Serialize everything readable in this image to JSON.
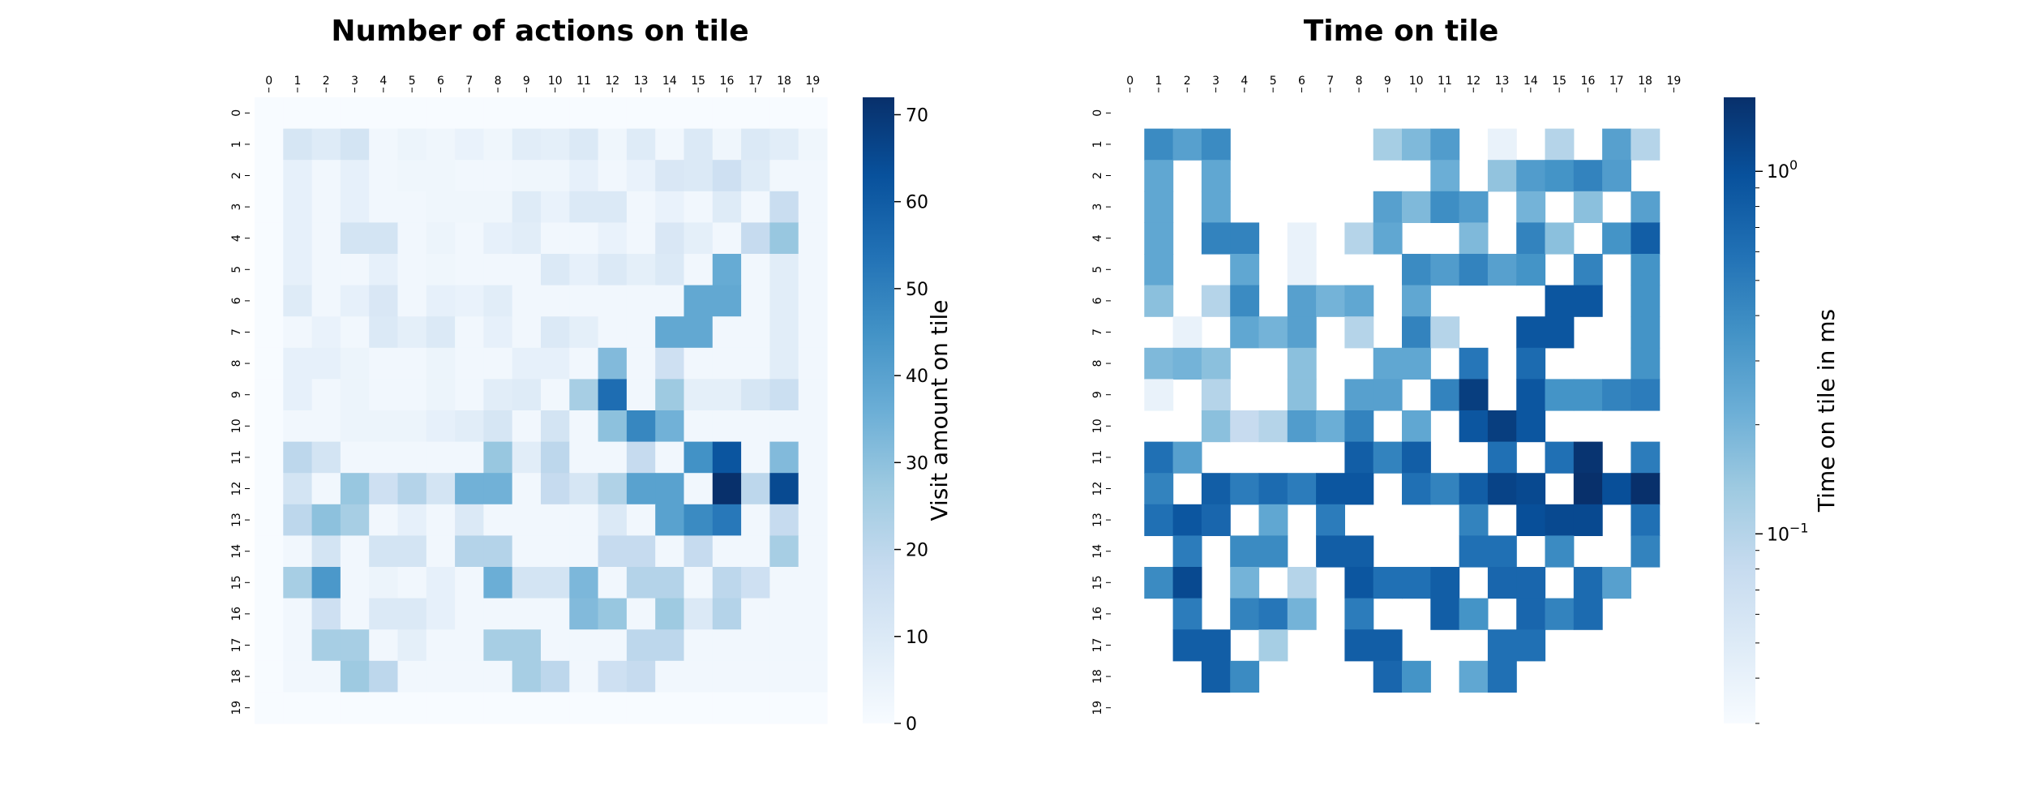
{
  "chart_data": [
    {
      "type": "heatmap",
      "title": "Number of actions on tile",
      "x_ticks": [
        "0",
        "1",
        "2",
        "3",
        "4",
        "5",
        "6",
        "7",
        "8",
        "9",
        "10",
        "11",
        "12",
        "13",
        "14",
        "15",
        "16",
        "17",
        "18",
        "19"
      ],
      "y_ticks": [
        "0",
        "1",
        "2",
        "3",
        "4",
        "5",
        "6",
        "7",
        "8",
        "9",
        "10",
        "11",
        "12",
        "13",
        "14",
        "15",
        "16",
        "17",
        "18",
        "19"
      ],
      "colorbar": {
        "label": "Visit amount on tile",
        "scale": "linear",
        "range": [
          0,
          72
        ],
        "ticks": [
          "0",
          "10",
          "20",
          "30",
          "40",
          "50",
          "60",
          "70"
        ],
        "tick_values": [
          0,
          10,
          20,
          30,
          40,
          50,
          60,
          70
        ]
      },
      "colormap": "Blues",
      "values": [
        [
          0,
          0,
          0,
          0,
          0,
          0,
          0,
          0,
          0,
          0,
          0,
          0,
          0,
          0,
          0,
          0,
          0,
          0,
          0,
          0
        ],
        [
          0,
          12,
          9,
          13,
          2,
          4,
          3,
          5,
          3,
          8,
          7,
          10,
          3,
          9,
          2,
          10,
          3,
          10,
          8,
          3
        ],
        [
          0,
          6,
          2,
          6,
          2,
          3,
          3,
          2,
          2,
          3,
          3,
          6,
          2,
          5,
          11,
          10,
          15,
          9,
          2,
          2
        ],
        [
          0,
          6,
          2,
          6,
          2,
          2,
          3,
          3,
          3,
          9,
          5,
          10,
          10,
          2,
          5,
          2,
          9,
          2,
          17,
          2
        ],
        [
          0,
          6,
          2,
          13,
          13,
          2,
          4,
          2,
          6,
          8,
          2,
          2,
          5,
          2,
          11,
          7,
          2,
          18,
          28,
          2
        ],
        [
          0,
          6,
          2,
          2,
          6,
          2,
          3,
          2,
          2,
          2,
          10,
          6,
          10,
          7,
          10,
          2,
          37,
          2,
          8,
          2
        ],
        [
          0,
          9,
          2,
          6,
          11,
          2,
          6,
          5,
          8,
          2,
          2,
          2,
          2,
          2,
          2,
          38,
          38,
          2,
          8,
          2
        ],
        [
          0,
          2,
          5,
          2,
          10,
          7,
          10,
          2,
          6,
          2,
          10,
          7,
          2,
          2,
          38,
          38,
          2,
          2,
          8,
          2
        ],
        [
          0,
          6,
          6,
          4,
          2,
          2,
          4,
          2,
          2,
          6,
          6,
          2,
          32,
          2,
          15,
          2,
          2,
          2,
          8,
          2
        ],
        [
          0,
          6,
          2,
          4,
          2,
          2,
          4,
          2,
          8,
          9,
          2,
          25,
          55,
          2,
          27,
          7,
          7,
          12,
          16,
          2
        ],
        [
          0,
          2,
          2,
          4,
          4,
          4,
          6,
          8,
          12,
          2,
          13,
          2,
          30,
          48,
          35,
          2,
          2,
          2,
          2,
          2
        ],
        [
          0,
          20,
          13,
          2,
          2,
          2,
          2,
          2,
          28,
          8,
          20,
          2,
          2,
          18,
          2,
          45,
          62,
          2,
          32,
          2
        ],
        [
          0,
          13,
          2,
          28,
          15,
          22,
          13,
          35,
          35,
          2,
          18,
          12,
          23,
          40,
          40,
          2,
          72,
          20,
          65,
          2
        ],
        [
          0,
          20,
          30,
          25,
          2,
          6,
          2,
          10,
          2,
          2,
          2,
          2,
          10,
          2,
          40,
          47,
          52,
          2,
          18,
          2
        ],
        [
          0,
          2,
          13,
          2,
          13,
          13,
          2,
          22,
          22,
          2,
          2,
          2,
          18,
          18,
          2,
          18,
          2,
          2,
          25,
          2
        ],
        [
          0,
          25,
          43,
          2,
          4,
          2,
          6,
          2,
          36,
          13,
          13,
          33,
          2,
          22,
          22,
          2,
          20,
          15,
          2,
          2
        ],
        [
          0,
          2,
          15,
          2,
          10,
          10,
          6,
          2,
          2,
          2,
          2,
          32,
          28,
          2,
          27,
          10,
          22,
          2,
          2,
          2
        ],
        [
          0,
          2,
          25,
          25,
          2,
          7,
          2,
          2,
          25,
          25,
          2,
          2,
          2,
          20,
          20,
          2,
          2,
          2,
          2,
          2
        ],
        [
          0,
          2,
          2,
          27,
          20,
          2,
          2,
          2,
          2,
          25,
          20,
          2,
          15,
          18,
          2,
          2,
          2,
          2,
          2,
          2
        ],
        [
          0,
          0,
          0,
          0,
          0,
          0,
          0,
          0,
          0,
          0,
          0,
          0,
          0,
          0,
          0,
          0,
          0,
          0,
          0,
          0
        ]
      ]
    },
    {
      "type": "heatmap",
      "title": "Time on tile",
      "x_ticks": [
        "0",
        "1",
        "2",
        "3",
        "4",
        "5",
        "6",
        "7",
        "8",
        "9",
        "10",
        "11",
        "12",
        "13",
        "14",
        "15",
        "16",
        "17",
        "18",
        "19"
      ],
      "y_ticks": [
        "0",
        "1",
        "2",
        "3",
        "4",
        "5",
        "6",
        "7",
        "8",
        "9",
        "10",
        "11",
        "12",
        "13",
        "14",
        "15",
        "16",
        "17",
        "18",
        "19"
      ],
      "colorbar": {
        "label": "Time on tile in ms",
        "scale": "log",
        "range": [
          0.03,
          1.6
        ],
        "major_ticks": [
          1,
          0.1
        ],
        "major_tick_labels": [
          [
            "10",
            "0"
          ],
          [
            "10",
            "−1"
          ]
        ]
      },
      "colormap": "Blues",
      "values": [
        [
          null,
          null,
          null,
          null,
          null,
          null,
          null,
          null,
          null,
          null,
          null,
          null,
          null,
          null,
          null,
          null,
          null,
          null,
          null,
          null
        ],
        [
          null,
          0.4,
          0.28,
          0.4,
          null,
          null,
          null,
          null,
          null,
          0.12,
          0.18,
          0.3,
          null,
          0.04,
          null,
          0.1,
          null,
          0.28,
          0.1,
          null
        ],
        [
          null,
          0.25,
          null,
          0.25,
          null,
          null,
          null,
          null,
          null,
          null,
          null,
          0.22,
          null,
          0.15,
          0.3,
          0.35,
          0.45,
          0.3,
          null,
          null
        ],
        [
          null,
          0.25,
          null,
          0.25,
          null,
          null,
          null,
          null,
          null,
          0.28,
          0.18,
          0.38,
          0.3,
          null,
          0.2,
          null,
          0.16,
          null,
          0.28,
          null
        ],
        [
          null,
          0.25,
          null,
          0.45,
          0.45,
          null,
          0.04,
          null,
          0.1,
          0.25,
          null,
          null,
          0.18,
          null,
          0.45,
          0.16,
          null,
          0.35,
          0.8,
          null
        ],
        [
          null,
          0.25,
          null,
          null,
          0.25,
          null,
          0.04,
          null,
          null,
          null,
          0.4,
          0.3,
          0.45,
          0.28,
          0.35,
          null,
          0.45,
          null,
          0.35,
          null
        ],
        [
          null,
          0.16,
          null,
          0.1,
          0.4,
          null,
          0.28,
          0.2,
          0.25,
          null,
          0.25,
          null,
          null,
          null,
          null,
          0.9,
          0.9,
          null,
          0.35,
          null
        ],
        [
          null,
          null,
          0.04,
          null,
          0.25,
          0.2,
          0.28,
          null,
          0.1,
          null,
          0.45,
          0.1,
          null,
          null,
          0.9,
          0.9,
          null,
          null,
          0.35,
          null
        ],
        [
          null,
          0.18,
          0.2,
          0.16,
          null,
          null,
          0.16,
          null,
          null,
          0.25,
          0.25,
          null,
          0.55,
          null,
          0.65,
          null,
          null,
          null,
          0.35,
          null
        ],
        [
          null,
          0.04,
          null,
          0.1,
          null,
          null,
          0.16,
          null,
          0.28,
          0.28,
          null,
          0.45,
          1.3,
          null,
          0.9,
          0.35,
          0.35,
          0.45,
          0.5,
          null
        ],
        [
          null,
          null,
          null,
          0.16,
          0.08,
          0.1,
          0.3,
          0.22,
          0.45,
          null,
          0.25,
          null,
          0.9,
          1.3,
          0.9,
          null,
          null,
          null,
          null,
          null
        ],
        [
          null,
          0.6,
          0.28,
          null,
          null,
          null,
          null,
          null,
          0.8,
          0.45,
          0.8,
          null,
          null,
          0.6,
          null,
          0.6,
          1.5,
          null,
          0.5,
          null
        ],
        [
          null,
          0.45,
          null,
          0.8,
          0.5,
          0.65,
          0.5,
          0.9,
          0.9,
          null,
          0.6,
          0.45,
          0.8,
          1.2,
          1.1,
          null,
          1.6,
          1.0,
          1.6,
          null
        ],
        [
          null,
          0.6,
          0.9,
          0.7,
          null,
          0.25,
          null,
          0.5,
          null,
          null,
          null,
          null,
          0.45,
          null,
          1.0,
          1.1,
          1.1,
          null,
          0.6,
          null
        ],
        [
          null,
          null,
          0.5,
          null,
          0.4,
          0.4,
          null,
          0.8,
          0.8,
          null,
          null,
          null,
          0.6,
          0.6,
          null,
          0.4,
          null,
          null,
          0.45,
          null
        ],
        [
          null,
          0.4,
          1.1,
          null,
          0.2,
          null,
          0.1,
          null,
          0.9,
          0.6,
          0.6,
          0.8,
          null,
          0.7,
          0.7,
          null,
          0.65,
          0.28,
          null,
          null
        ],
        [
          null,
          null,
          0.5,
          null,
          0.45,
          0.55,
          0.2,
          null,
          0.5,
          null,
          null,
          0.8,
          0.35,
          null,
          0.7,
          0.45,
          0.65,
          null,
          null,
          null
        ],
        [
          null,
          null,
          0.8,
          0.8,
          null,
          0.12,
          null,
          null,
          0.8,
          0.8,
          null,
          null,
          null,
          0.6,
          0.6,
          null,
          null,
          null,
          null,
          null
        ],
        [
          null,
          null,
          null,
          0.8,
          0.4,
          null,
          null,
          null,
          null,
          0.7,
          0.35,
          null,
          0.25,
          0.6,
          null,
          null,
          null,
          null,
          null,
          null
        ],
        [
          null,
          null,
          null,
          null,
          null,
          null,
          null,
          null,
          null,
          null,
          null,
          null,
          null,
          null,
          null,
          null,
          null,
          null,
          null,
          null
        ]
      ]
    }
  ]
}
